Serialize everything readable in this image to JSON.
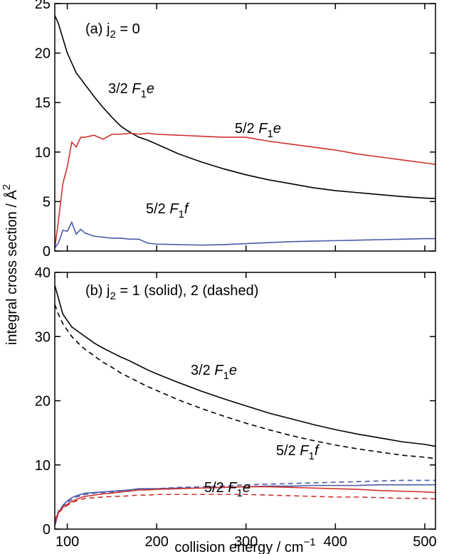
{
  "chart_data": [
    {
      "type": "line",
      "title": {
        "parts": [
          {
            "t": "(a)  j"
          },
          {
            "t": "2",
            "sub": true
          },
          {
            "t": " = 0"
          }
        ]
      },
      "ylabel": {
        "parts": [
          {
            "t": "integral cross section / Å"
          },
          {
            "t": "2",
            "sup": true
          }
        ]
      },
      "x": [
        86,
        90,
        95,
        100,
        105,
        110,
        115,
        120,
        130,
        140,
        150,
        160,
        170,
        180,
        190,
        200,
        225,
        250,
        275,
        300,
        325,
        350,
        375,
        400,
        425,
        450,
        475,
        500,
        512
      ],
      "xlim": [
        86,
        512
      ],
      "xticks": [
        100,
        200,
        300,
        400,
        500
      ],
      "xticklabels": false,
      "ylim": [
        0,
        25
      ],
      "yticks": [
        0,
        5,
        10,
        15,
        20,
        25
      ],
      "series": [
        {
          "color": "#000000",
          "dash": false,
          "values": [
            23.8,
            23,
            21.5,
            20,
            19,
            18,
            17.4,
            16.8,
            15.6,
            14.5,
            13.5,
            12.6,
            12,
            11.5,
            11.2,
            10.8,
            9.8,
            9,
            8.3,
            7.7,
            7.2,
            6.8,
            6.4,
            6.1,
            5.9,
            5.7,
            5.5,
            5.35,
            5.3
          ]
        },
        {
          "color": "#d0312d",
          "dash": false,
          "values": [
            0.3,
            3,
            6.8,
            8.5,
            11,
            10.5,
            11.5,
            11.5,
            11.7,
            11.3,
            11.8,
            11.8,
            11.9,
            11.8,
            11.9,
            11.8,
            11.7,
            11.6,
            11.5,
            11.5,
            11.1,
            10.8,
            10.5,
            10.2,
            9.8,
            9.5,
            9.2,
            8.9,
            8.75
          ]
        },
        {
          "color": "#4a5aa8",
          "dash": false,
          "values": [
            0.3,
            0.8,
            2.1,
            2,
            2.9,
            1.7,
            2.2,
            1.8,
            1.5,
            1.4,
            1.3,
            1.3,
            1.2,
            1.2,
            0.8,
            0.7,
            0.65,
            0.6,
            0.65,
            0.75,
            0.85,
            0.95,
            1.0,
            1.05,
            1.1,
            1.15,
            1.2,
            1.25,
            1.25
          ]
        }
      ],
      "annotations": [
        {
          "color": "#000000",
          "parts": [
            {
              "t": "3/2 "
            },
            {
              "t": "F",
              "i": true
            },
            {
              "t": "1",
              "sub": true
            },
            {
              "t": "e",
              "i": true
            }
          ]
        },
        {
          "color": "#d0312d",
          "parts": [
            {
              "t": "5/2 "
            },
            {
              "t": "F",
              "i": true
            },
            {
              "t": "1",
              "sub": true
            },
            {
              "t": "e",
              "i": true
            }
          ]
        },
        {
          "color": "#4a5aa8",
          "parts": [
            {
              "t": "5/2 "
            },
            {
              "t": "F",
              "i": true
            },
            {
              "t": "1",
              "sub": true
            },
            {
              "t": "f",
              "i": true
            }
          ]
        }
      ]
    },
    {
      "type": "line",
      "title": {
        "parts": [
          {
            "t": "(b)  j"
          },
          {
            "t": "2",
            "sub": true
          },
          {
            "t": " = 1 (solid), 2 (dashed)"
          }
        ]
      },
      "xlabel": {
        "parts": [
          {
            "t": "collision energy / cm"
          },
          {
            "t": "−1",
            "sup": true
          }
        ]
      },
      "x": [
        86,
        90,
        95,
        100,
        105,
        110,
        115,
        120,
        130,
        140,
        150,
        160,
        170,
        180,
        190,
        200,
        225,
        250,
        275,
        300,
        325,
        350,
        375,
        400,
        425,
        450,
        475,
        500,
        512
      ],
      "xlim": [
        86,
        512
      ],
      "xticks": [
        100,
        200,
        300,
        400,
        500
      ],
      "xticklabels": true,
      "ylim": [
        0,
        40
      ],
      "yticks": [
        0,
        10,
        20,
        30,
        40
      ],
      "series": [
        {
          "color": "#000000",
          "dash": false,
          "values": [
            38,
            36,
            33.5,
            32.5,
            31.5,
            31,
            30.5,
            30,
            29,
            28.2,
            27.5,
            26.8,
            26.2,
            25.5,
            24.8,
            24.2,
            22.8,
            21.5,
            20.3,
            19.2,
            18.1,
            17.2,
            16.3,
            15.5,
            14.8,
            14.2,
            13.6,
            13.2,
            12.9
          ]
        },
        {
          "color": "#000000",
          "dash": true,
          "values": [
            35,
            33.5,
            32,
            31,
            30,
            29.3,
            28.6,
            28,
            27,
            26,
            25.2,
            24.3,
            23.6,
            22.9,
            22.2,
            21.6,
            20.1,
            18.8,
            17.6,
            16.5,
            15.5,
            14.6,
            13.8,
            13.1,
            12.5,
            12,
            11.5,
            11.2,
            11
          ]
        },
        {
          "color": "#4a5aa8",
          "dash": false,
          "values": [
            0.5,
            2.5,
            3.7,
            4.4,
            4.9,
            5.2,
            5.4,
            5.6,
            5.7,
            5.8,
            5.9,
            6,
            6.1,
            6.3,
            6.3,
            6.3,
            6.4,
            6.4,
            6.5,
            6.6,
            6.7,
            6.7,
            6.8,
            6.8,
            6.8,
            6.9,
            6.9,
            6.9,
            6.9
          ]
        },
        {
          "color": "#4a5aa8",
          "dash": true,
          "values": [
            1,
            2.8,
            3.6,
            4.2,
            4.6,
            5,
            5.2,
            5.4,
            5.6,
            5.7,
            5.8,
            5.9,
            6,
            6.1,
            6.2,
            6.3,
            6.5,
            6.6,
            6.7,
            6.9,
            7.0,
            7.1,
            7.2,
            7.3,
            7.4,
            7.5,
            7.6,
            7.6,
            7.6
          ]
        },
        {
          "color": "#d0312d",
          "dash": false,
          "values": [
            1,
            2.6,
            3.4,
            3.9,
            4.3,
            4.6,
            4.9,
            5.1,
            5.3,
            5.5,
            5.6,
            5.8,
            5.9,
            6.1,
            6.1,
            6.2,
            6.3,
            6.4,
            6.5,
            6.6,
            6.6,
            6.5,
            6.4,
            6.3,
            6.2,
            6.0,
            5.9,
            5.8,
            5.7
          ]
        },
        {
          "color": "#d0312d",
          "dash": true,
          "values": [
            1.5,
            2.5,
            3.2,
            3.7,
            4.1,
            4.4,
            4.6,
            4.8,
            4.9,
            5.0,
            5.1,
            5.1,
            5.2,
            5.3,
            5.3,
            5.4,
            5.4,
            5.4,
            5.4,
            5.4,
            5.3,
            5.2,
            5.1,
            5.0,
            5.0,
            4.9,
            4.8,
            4.8,
            4.7
          ]
        }
      ],
      "annotations": [
        {
          "color": "#000000",
          "parts": [
            {
              "t": "3/2 "
            },
            {
              "t": "F",
              "i": true
            },
            {
              "t": "1",
              "sub": true
            },
            {
              "t": "e",
              "i": true
            }
          ]
        },
        {
          "color": "#4a5aa8",
          "parts": [
            {
              "t": "5/2 "
            },
            {
              "t": "F",
              "i": true
            },
            {
              "t": "1",
              "sub": true
            },
            {
              "t": "f",
              "i": true
            }
          ]
        },
        {
          "color": "#d0312d",
          "parts": [
            {
              "t": "5/2 "
            },
            {
              "t": "F",
              "i": true
            },
            {
              "t": "1",
              "sub": true
            },
            {
              "t": "e",
              "i": true
            }
          ]
        }
      ]
    }
  ]
}
